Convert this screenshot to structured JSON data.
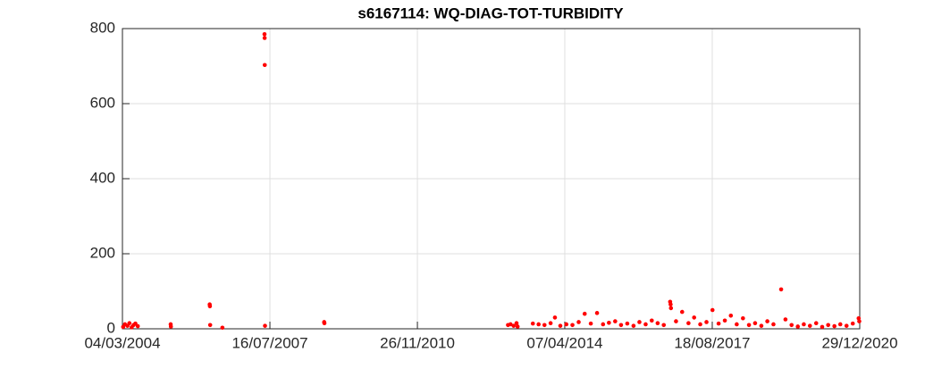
{
  "chart_data": {
    "type": "scatter",
    "title": "s6167114: WQ-DIAG-TOT-TURBIDITY",
    "x": [
      "2004-03-10",
      "2004-03-25",
      "2004-04-15",
      "2004-05-01",
      "2004-05-20",
      "2004-06-05",
      "2004-06-20",
      "2004-07-10",
      "2005-04-10",
      "2005-04-12",
      "2006-03-01",
      "2006-03-03",
      "2006-03-05",
      "2006-06-15",
      "2007-06-01",
      "2007-06-02",
      "2007-06-03",
      "2007-06-05",
      "2008-10-10",
      "2008-10-12",
      "2012-12-20",
      "2013-01-10",
      "2013-02-05",
      "2013-03-01",
      "2013-03-10",
      "2013-07-15",
      "2013-09-01",
      "2013-10-20",
      "2013-12-10",
      "2014-01-15",
      "2014-03-01",
      "2014-04-20",
      "2014-06-10",
      "2014-08-01",
      "2014-09-20",
      "2014-11-10",
      "2015-01-01",
      "2015-02-20",
      "2015-04-10",
      "2015-06-01",
      "2015-07-20",
      "2015-09-10",
      "2015-11-01",
      "2015-12-20",
      "2016-02-10",
      "2016-04-01",
      "2016-05-20",
      "2016-07-10",
      "2016-09-01",
      "2016-09-05",
      "2016-09-08",
      "2016-10-20",
      "2016-12-10",
      "2017-02-01",
      "2017-03-20",
      "2017-05-10",
      "2017-07-01",
      "2017-08-20",
      "2017-10-10",
      "2017-12-01",
      "2018-01-20",
      "2018-03-10",
      "2018-05-01",
      "2018-06-20",
      "2018-08-10",
      "2018-10-01",
      "2018-11-20",
      "2019-01-10",
      "2019-03-15",
      "2019-04-20",
      "2019-06-10",
      "2019-08-01",
      "2019-09-20",
      "2019-11-10",
      "2020-01-01",
      "2020-02-20",
      "2020-04-10",
      "2020-06-01",
      "2020-07-20",
      "2020-09-10",
      "2020-11-01",
      "2020-12-20",
      "2020-12-25"
    ],
    "series": [
      {
        "name": "WQ-DIAG-TOT-TURBIDITY",
        "color": "#ff0000",
        "values": [
          5,
          12,
          8,
          15,
          4,
          10,
          14,
          7,
          12,
          6,
          65,
          60,
          10,
          3,
          785,
          775,
          703,
          8,
          18,
          15,
          10,
          12,
          8,
          15,
          6,
          14,
          12,
          10,
          15,
          30,
          8,
          12,
          10,
          18,
          40,
          14,
          42,
          12,
          16,
          20,
          10,
          14,
          8,
          18,
          12,
          22,
          15,
          10,
          72,
          65,
          55,
          20,
          45,
          15,
          30,
          12,
          18,
          50,
          14,
          22,
          35,
          12,
          28,
          10,
          15,
          8,
          20,
          12,
          105,
          25,
          10,
          6,
          12,
          8,
          15,
          5,
          10,
          7,
          12,
          8,
          14,
          28,
          20
        ]
      }
    ],
    "xlim": [
      "2004-03-04",
      "2020-12-29"
    ],
    "xticks": [
      {
        "value": "2004-03-04",
        "label": "04/03/2004"
      },
      {
        "value": "2007-07-16",
        "label": "16/07/2007"
      },
      {
        "value": "2010-11-26",
        "label": "26/11/2010"
      },
      {
        "value": "2014-04-07",
        "label": "07/04/2014"
      },
      {
        "value": "2017-08-18",
        "label": "18/08/2017"
      },
      {
        "value": "2020-12-29",
        "label": "29/12/2020"
      }
    ],
    "ylim": [
      0,
      800
    ],
    "yticks": [
      0,
      200,
      400,
      600,
      800
    ],
    "grid": true
  }
}
